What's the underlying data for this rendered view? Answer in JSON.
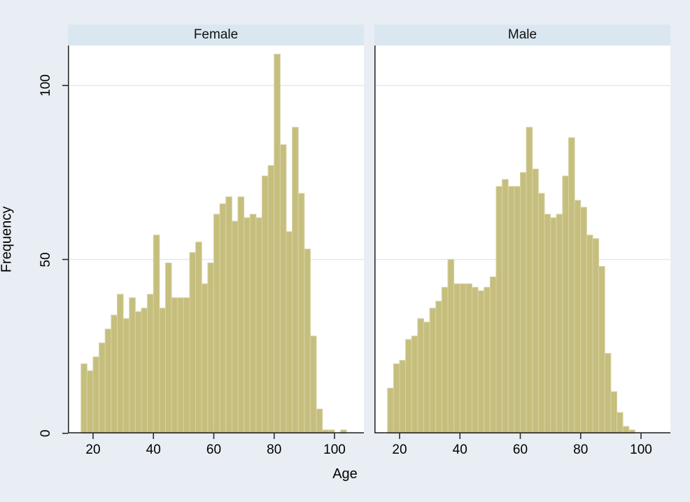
{
  "figure": {
    "background": "#e8eef3",
    "panel_header_color": "#dae7f0",
    "plot_background": "#ffffff",
    "gridline_color": "#dfeaf2",
    "axis_color": "#2b2b2b",
    "bar_fill": "#c6be7d",
    "bar_outline": "#d8d3a6"
  },
  "y_axis": {
    "label": "Frequency",
    "tick_labels": [
      "0",
      "50",
      "100"
    ]
  },
  "x_axis": {
    "label": "Age",
    "tick_labels": [
      "20",
      "40",
      "60",
      "80",
      "100"
    ]
  },
  "panels": [
    {
      "title": "Female"
    },
    {
      "title": "Male"
    }
  ],
  "chart_data": [
    {
      "type": "bar",
      "title": "Female",
      "xlabel": "Age",
      "ylabel": "Frequency",
      "bin_width": 2,
      "x": [
        16,
        18,
        20,
        22,
        24,
        26,
        28,
        30,
        32,
        34,
        36,
        38,
        40,
        42,
        44,
        46,
        48,
        50,
        52,
        54,
        56,
        58,
        60,
        62,
        64,
        66,
        68,
        70,
        72,
        74,
        76,
        78,
        80,
        82,
        84,
        86,
        88,
        90,
        92,
        94,
        96,
        98,
        100,
        102,
        104
      ],
      "values": [
        20,
        18,
        22,
        26,
        30,
        34,
        40,
        33,
        39,
        35,
        36,
        40,
        57,
        36,
        49,
        39,
        39,
        39,
        52,
        55,
        43,
        49,
        63,
        66,
        68,
        61,
        68,
        62,
        63,
        62,
        74,
        77,
        109,
        83,
        58,
        88,
        69,
        53,
        28,
        7,
        1,
        1,
        0,
        1,
        0
      ],
      "x_ticks": [
        20,
        40,
        60,
        80,
        100
      ],
      "y_ticks": [
        0,
        50,
        100
      ],
      "ylim": [
        0,
        111.5
      ],
      "grid": "horizontal",
      "legend": "none",
      "y_tick_marks": true
    },
    {
      "type": "bar",
      "title": "Male",
      "xlabel": "Age",
      "ylabel": "Frequency",
      "bin_width": 2,
      "x": [
        16,
        18,
        20,
        22,
        24,
        26,
        28,
        30,
        32,
        34,
        36,
        38,
        40,
        42,
        44,
        46,
        48,
        50,
        52,
        54,
        56,
        58,
        60,
        62,
        64,
        66,
        68,
        70,
        72,
        74,
        76,
        78,
        80,
        82,
        84,
        86,
        88,
        90,
        92,
        94,
        96
      ],
      "values": [
        13,
        20,
        21,
        27,
        28,
        33,
        32,
        36,
        38,
        42,
        50,
        43,
        43,
        43,
        42,
        41,
        42,
        45,
        71,
        73,
        71,
        71,
        75,
        88,
        76,
        69,
        63,
        62,
        63,
        74,
        85,
        67,
        65,
        57,
        56,
        48,
        23,
        12,
        6,
        2,
        1
      ],
      "x_ticks": [
        20,
        40,
        60,
        80,
        100
      ],
      "y_ticks": [
        0,
        50,
        100
      ],
      "ylim": [
        0,
        111.5
      ],
      "grid": "horizontal",
      "legend": "none",
      "y_tick_marks": false
    }
  ]
}
